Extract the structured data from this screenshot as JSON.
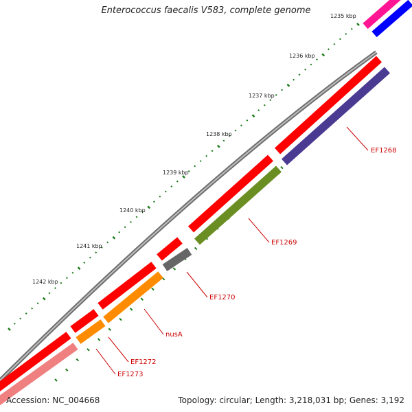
{
  "title": "Enterococcus faecalis V583, complete genome",
  "footer": {
    "accession_prefix": "Accession: ",
    "accession": "NC_004668",
    "topology_prefix": "Topology: ",
    "topology": "circular",
    "length_prefix": "; Length: ",
    "length": "3,218,031 bp",
    "genes_prefix": "; Genes: ",
    "genes": "3,192"
  },
  "colors": {
    "backbone": "#8a8a8a",
    "tick": "#1a7a1a",
    "gene_label": "#cc0000",
    "leader": "#cc0000"
  },
  "ticks": [
    {
      "label": "1235 kbp"
    },
    {
      "label": "1236 kbp"
    },
    {
      "label": "1237 kbp"
    },
    {
      "label": "1238 kbp"
    },
    {
      "label": "1239 kbp"
    },
    {
      "label": "1240 kbp"
    },
    {
      "label": "1241 kbp"
    },
    {
      "label": "1242 kbp"
    }
  ],
  "genes": [
    {
      "name": "EF1268",
      "feature_color": "#ff0000",
      "cds_color": "#4b3a91"
    },
    {
      "name": "EF1269",
      "feature_color": "#ff0000",
      "cds_color": "#6b8e23"
    },
    {
      "name": "EF1270",
      "feature_color": "#ff0000",
      "cds_color": "#666666"
    },
    {
      "name": "nusA",
      "feature_color": "#ff0000",
      "cds_color": "#ff8c00"
    },
    {
      "name": "EF1272",
      "feature_color": "#ff0000",
      "cds_color": "#ff8c00"
    },
    {
      "name": "EF1273",
      "feature_color": "#ff0000",
      "cds_color": "#f08080"
    }
  ],
  "top_features": [
    {
      "color": "#ff1493"
    },
    {
      "color": "#0000ff"
    }
  ]
}
